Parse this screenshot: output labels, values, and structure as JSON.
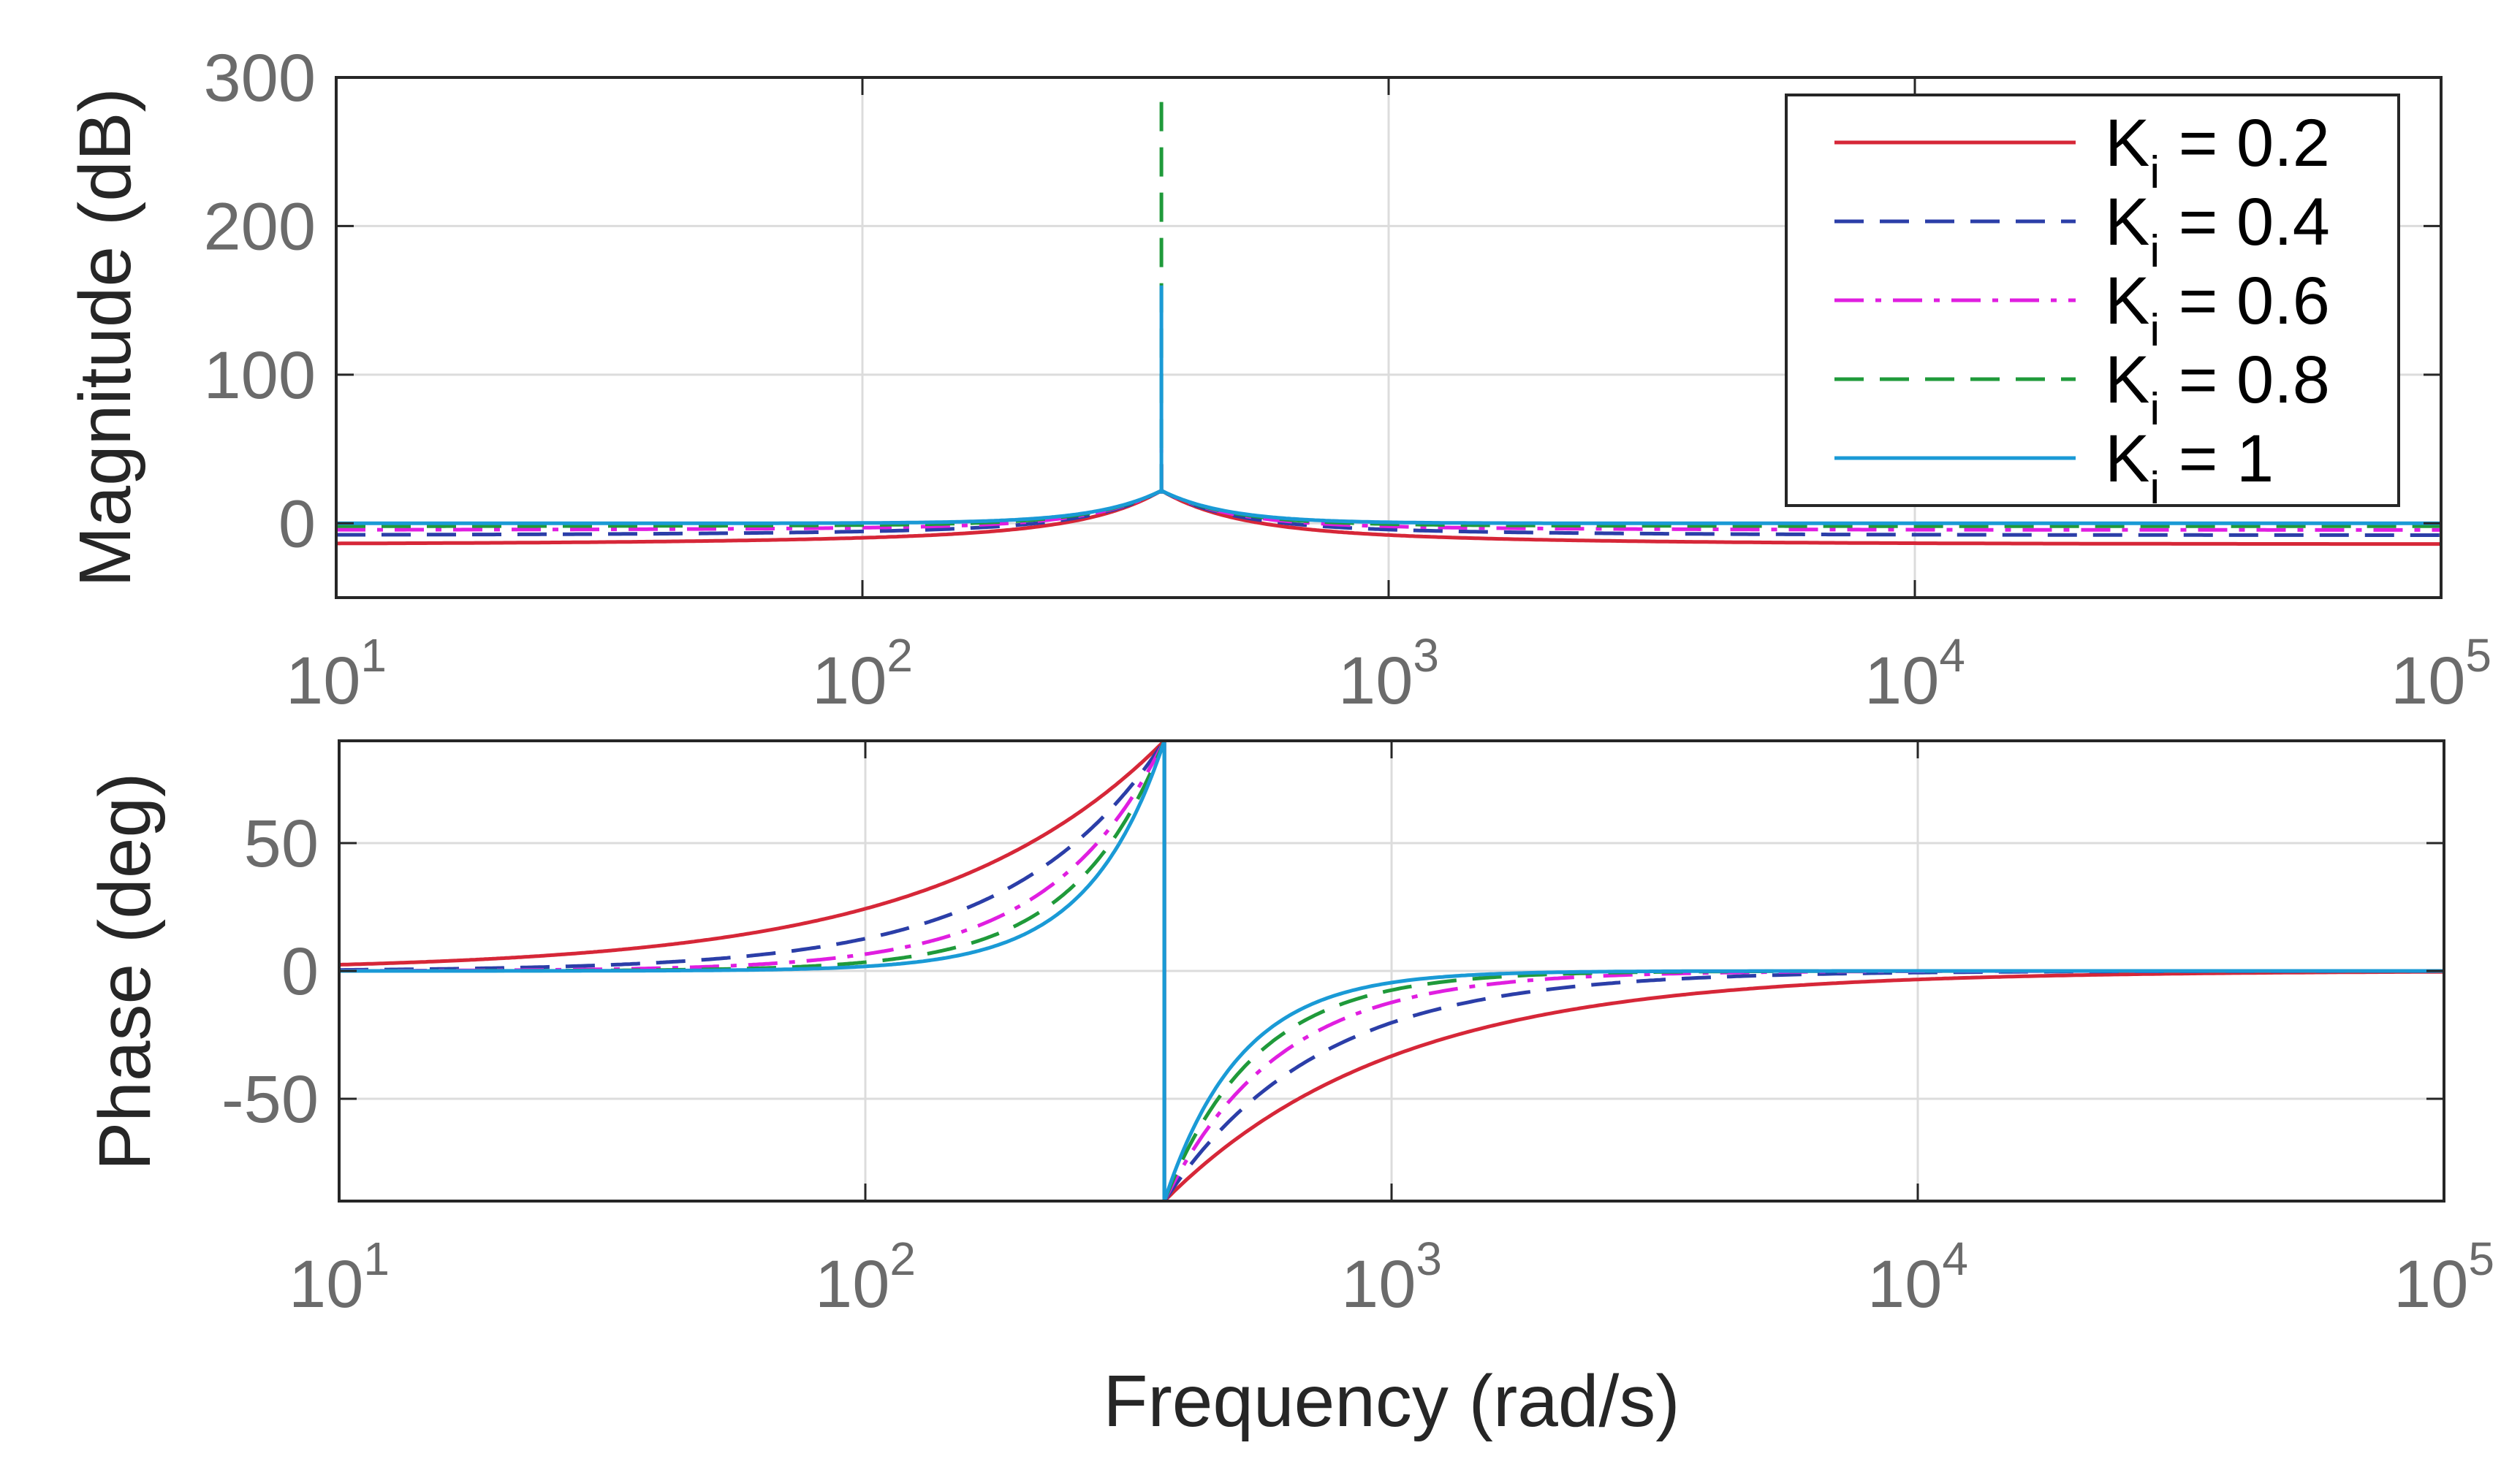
{
  "chart_data": [
    {
      "type": "line",
      "panel": "magnitude",
      "ylabel": "Magnitude (dB)",
      "xscale": "log",
      "xlim": [
        10,
        100000
      ],
      "ylim": [
        -50,
        300
      ],
      "yticks": [
        0,
        100,
        200,
        300
      ],
      "ytick_labels": [
        "0",
        "100",
        "200",
        "300"
      ],
      "xticks": [
        10,
        100,
        1000,
        10000,
        100000
      ],
      "xtick_labels": [
        {
          "base": "10",
          "exp": "1"
        },
        {
          "base": "10",
          "exp": "2"
        },
        {
          "base": "10",
          "exp": "3"
        },
        {
          "base": "10",
          "exp": "4"
        },
        {
          "base": "10",
          "exp": "5"
        }
      ],
      "grid": true,
      "resonance_frequency": 370,
      "series": [
        {
          "name": "Ki = 0.2",
          "label_main": "K",
          "label_sub": "i",
          "label_rest": " = 0.2",
          "color": "#d62738",
          "dash": "solid",
          "low_level_db": -14,
          "peak_db": 40
        },
        {
          "name": "Ki = 0.4",
          "label_main": "K",
          "label_sub": "i",
          "label_rest": " = 0.4",
          "color": "#2b3ea8",
          "dash": "dashed",
          "low_level_db": -8,
          "peak_db": 45
        },
        {
          "name": "Ki = 0.6",
          "label_main": "K",
          "label_sub": "i",
          "label_rest": " = 0.6",
          "color": "#e01ee0",
          "dash": "dashdot",
          "low_level_db": -4.5,
          "peak_db": 50
        },
        {
          "name": "Ki = 0.8",
          "label_main": "K",
          "label_sub": "i",
          "label_rest": " = 0.8",
          "color": "#1f9a3a",
          "dash": "dashed",
          "low_level_db": -2,
          "peak_db": 290
        },
        {
          "name": "Ki = 1",
          "label_main": "K",
          "label_sub": "i",
          "label_rest": " = 1",
          "color": "#1a9ad6",
          "dash": "solid",
          "low_level_db": 0,
          "peak_db": 160
        }
      ],
      "legend": "top-right"
    },
    {
      "type": "line",
      "panel": "phase",
      "ylabel": "Phase (deg)",
      "xlabel": "Frequency (rad/s)",
      "xscale": "log",
      "xlim": [
        10,
        100000
      ],
      "ylim": [
        -90,
        90
      ],
      "yticks": [
        -50,
        0,
        50
      ],
      "ytick_labels": [
        "-50",
        "0",
        "50"
      ],
      "xticks": [
        10,
        100,
        1000,
        10000,
        100000
      ],
      "xtick_labels": [
        {
          "base": "10",
          "exp": "1"
        },
        {
          "base": "10",
          "exp": "2"
        },
        {
          "base": "10",
          "exp": "3"
        },
        {
          "base": "10",
          "exp": "4"
        },
        {
          "base": "10",
          "exp": "5"
        }
      ],
      "grid": true,
      "resonance_frequency": 370,
      "series": [
        {
          "name": "Ki = 0.2",
          "color": "#d62738",
          "dash": "solid",
          "sharpness": 1
        },
        {
          "name": "Ki = 0.4",
          "color": "#2b3ea8",
          "dash": "dashed",
          "sharpness": 1.5
        },
        {
          "name": "Ki = 0.6",
          "color": "#e01ee0",
          "dash": "dashdot",
          "sharpness": 2
        },
        {
          "name": "Ki = 0.8",
          "color": "#1f9a3a",
          "dash": "dashed",
          "sharpness": 2.5
        },
        {
          "name": "Ki = 1",
          "color": "#1a9ad6",
          "dash": "solid",
          "sharpness": 3
        }
      ]
    }
  ]
}
